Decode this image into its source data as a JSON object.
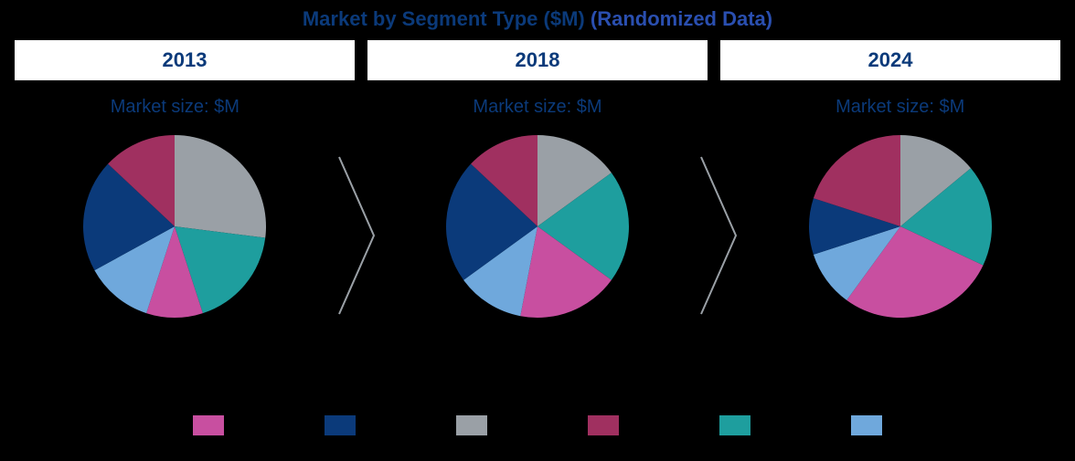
{
  "title": {
    "main": "Market by Segment Type ($M)",
    "sub": "(Randomized Data)",
    "main_color": "#0b3a7a",
    "sub_color": "#2a4fb0",
    "fontsize": 22
  },
  "background_color": "#000000",
  "year_tab": {
    "bg": "#ffffff",
    "text_color": "#0b3a7a",
    "fontsize": 22
  },
  "market_size_label": {
    "text": "Market size: $M",
    "color": "#0b3a7a",
    "fontsize": 20
  },
  "arrow": {
    "stroke": "#9aa0a6",
    "stroke_width": 2
  },
  "segment_colors": {
    "gray": "#9aa0a6",
    "teal": "#1e9e9e",
    "pink": "#c84fa0",
    "ltblue": "#6fa8dc",
    "navy": "#0b3a7a",
    "maroon": "#a03060"
  },
  "legend_order": [
    "pink",
    "navy",
    "gray",
    "maroon",
    "teal",
    "ltblue"
  ],
  "pies": [
    {
      "year": "2013",
      "type": "pie",
      "radius": 100,
      "start_angle_deg": -90,
      "slices": [
        {
          "key": "gray",
          "value": 27
        },
        {
          "key": "teal",
          "value": 18
        },
        {
          "key": "pink",
          "value": 10
        },
        {
          "key": "ltblue",
          "value": 12
        },
        {
          "key": "navy",
          "value": 20
        },
        {
          "key": "maroon",
          "value": 13
        }
      ]
    },
    {
      "year": "2018",
      "type": "pie",
      "radius": 100,
      "start_angle_deg": -90,
      "slices": [
        {
          "key": "gray",
          "value": 15
        },
        {
          "key": "teal",
          "value": 20
        },
        {
          "key": "pink",
          "value": 18
        },
        {
          "key": "ltblue",
          "value": 12
        },
        {
          "key": "navy",
          "value": 22
        },
        {
          "key": "maroon",
          "value": 13
        }
      ]
    },
    {
      "year": "2024",
      "type": "pie",
      "radius": 100,
      "start_angle_deg": -90,
      "slices": [
        {
          "key": "gray",
          "value": 14
        },
        {
          "key": "teal",
          "value": 18
        },
        {
          "key": "pink",
          "value": 28
        },
        {
          "key": "ltblue",
          "value": 10
        },
        {
          "key": "navy",
          "value": 10
        },
        {
          "key": "maroon",
          "value": 20
        }
      ]
    }
  ]
}
